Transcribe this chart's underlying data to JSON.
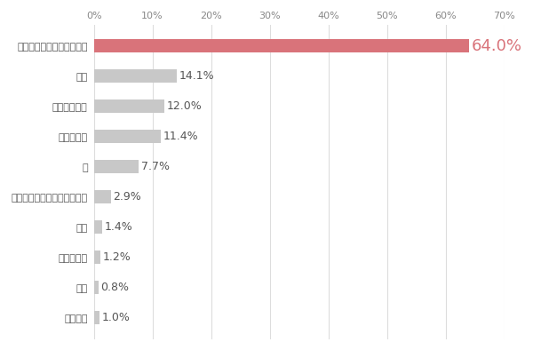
{
  "categories": [
    "誰にも相談したことがない",
    "友人",
    "婦人科の先生",
    "パートナー",
    "親",
    "美容皮膚科・美容外科の先生",
    "親成",
    "学校の先生",
    "先輩",
    "その他："
  ],
  "values": [
    64.0,
    14.1,
    12.0,
    11.4,
    7.7,
    2.9,
    1.4,
    1.2,
    0.8,
    1.0
  ],
  "bar_colors": [
    "#d9737a",
    "#c8c8c8",
    "#c8c8c8",
    "#c8c8c8",
    "#c8c8c8",
    "#c8c8c8",
    "#c8c8c8",
    "#c8c8c8",
    "#c8c8c8",
    "#c8c8c8"
  ],
  "label_colors": [
    "#d9737a",
    "#555555",
    "#555555",
    "#555555",
    "#555555",
    "#555555",
    "#555555",
    "#555555",
    "#555555",
    "#555555"
  ],
  "label_fontsizes": [
    13,
    9,
    9,
    9,
    9,
    9,
    9,
    9,
    9,
    9
  ],
  "xlim": [
    0,
    70
  ],
  "xticks": [
    0,
    10,
    20,
    30,
    40,
    50,
    60,
    70
  ],
  "xtick_labels": [
    "0%",
    "10%",
    "20%",
    "30%",
    "40%",
    "50%",
    "60%",
    "70%"
  ],
  "background_color": "#ffffff",
  "tick_label_fontsize": 8,
  "ytick_fontsize": 8,
  "bar_height": 0.45,
  "grid_color": "#dddddd"
}
